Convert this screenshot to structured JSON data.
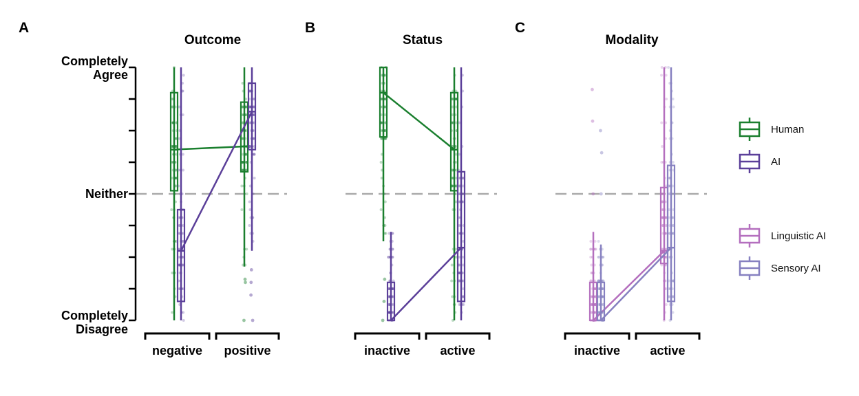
{
  "chart_data": [
    {
      "type": "box",
      "panel_letter": "A",
      "title": "Outcome",
      "categories": [
        "negative",
        "positive"
      ],
      "y_scale": {
        "min": 1,
        "max": 9,
        "grid_ref": 5,
        "tick_step": 1
      },
      "y_tick_labels": [
        {
          "value": 9,
          "lines": [
            "Completely",
            "Agree"
          ]
        },
        {
          "value": 5,
          "lines": [
            "Neither"
          ]
        },
        {
          "value": 1,
          "lines": [
            "Completely",
            "Disagree"
          ]
        }
      ],
      "series": [
        {
          "name": "Human",
          "color": "#1a7f2e",
          "boxes": [
            {
              "whisker_low": 1,
              "q1": 5.1,
              "median": 6.4,
              "q3": 8.2,
              "whisker_high": 9,
              "outliers": []
            },
            {
              "whisker_low": 2.7,
              "q1": 5.7,
              "median": 6.5,
              "q3": 7.9,
              "whisker_high": 9,
              "outliers": [
                2.3,
                2.2,
                1
              ]
            }
          ]
        },
        {
          "name": "AI",
          "color": "#5b3f99",
          "boxes": [
            {
              "whisker_low": 1,
              "q1": 1.6,
              "median": 3.2,
              "q3": 4.5,
              "whisker_high": 9,
              "outliers": []
            },
            {
              "whisker_low": 3.2,
              "q1": 6.4,
              "median": 7.6,
              "q3": 8.5,
              "whisker_high": 9,
              "outliers": [
                2.6,
                2.2,
                1.8,
                1
              ]
            }
          ]
        }
      ]
    },
    {
      "type": "box",
      "panel_letter": "B",
      "title": "Status",
      "categories": [
        "inactive",
        "active"
      ],
      "y_scale": {
        "min": 1,
        "max": 9,
        "grid_ref": 5,
        "tick_step": 1
      },
      "series": [
        {
          "name": "Human",
          "color": "#1a7f2e",
          "boxes": [
            {
              "whisker_low": 3.5,
              "q1": 6.8,
              "median": 8.2,
              "q3": 9,
              "whisker_high": 9,
              "outliers": [
                2.3,
                1.6,
                1
              ]
            },
            {
              "whisker_low": 1,
              "q1": 5.1,
              "median": 6.4,
              "q3": 8.2,
              "whisker_high": 9,
              "outliers": []
            }
          ]
        },
        {
          "name": "AI",
          "color": "#5b3f99",
          "boxes": [
            {
              "whisker_low": 1,
              "q1": 1,
              "median": 1,
              "q3": 2.2,
              "whisker_high": 3.8,
              "outliers": []
            },
            {
              "whisker_low": 1,
              "q1": 1.6,
              "median": 3.3,
              "q3": 5.7,
              "whisker_high": 9,
              "outliers": []
            }
          ]
        }
      ]
    },
    {
      "type": "box",
      "panel_letter": "C",
      "title": "Modality",
      "categories": [
        "inactive",
        "active"
      ],
      "y_scale": {
        "min": 1,
        "max": 9,
        "grid_ref": 5,
        "tick_step": 1
      },
      "series": [
        {
          "name": "Linguistic AI",
          "color": "#b46fbe",
          "boxes": [
            {
              "whisker_low": 1,
              "q1": 1,
              "median": 1,
              "q3": 2.2,
              "whisker_high": 3.8,
              "outliers": [
                5,
                7.3,
                8.3
              ]
            },
            {
              "whisker_low": 1,
              "q1": 2.8,
              "median": 3.2,
              "q3": 5.2,
              "whisker_high": 9,
              "outliers": []
            }
          ]
        },
        {
          "name": "Sensory AI",
          "color": "#8680c0",
          "boxes": [
            {
              "whisker_low": 1,
              "q1": 1,
              "median": 1,
              "q3": 2.2,
              "whisker_high": 3.4,
              "outliers": [
                5,
                7,
                6.3
              ]
            },
            {
              "whisker_low": 1,
              "q1": 1.6,
              "median": 3.3,
              "q3": 5.9,
              "whisker_high": 9,
              "outliers": []
            }
          ]
        }
      ]
    }
  ],
  "legend": [
    {
      "name": "Human",
      "color": "#1a7f2e"
    },
    {
      "name": "AI",
      "color": "#5b3f99"
    },
    {
      "name": "Linguistic AI",
      "color": "#b46fbe"
    },
    {
      "name": "Sensory AI",
      "color": "#8680c0"
    }
  ],
  "style": {
    "reference_line_color": "#aaaaaa",
    "axis_color": "#000000"
  }
}
